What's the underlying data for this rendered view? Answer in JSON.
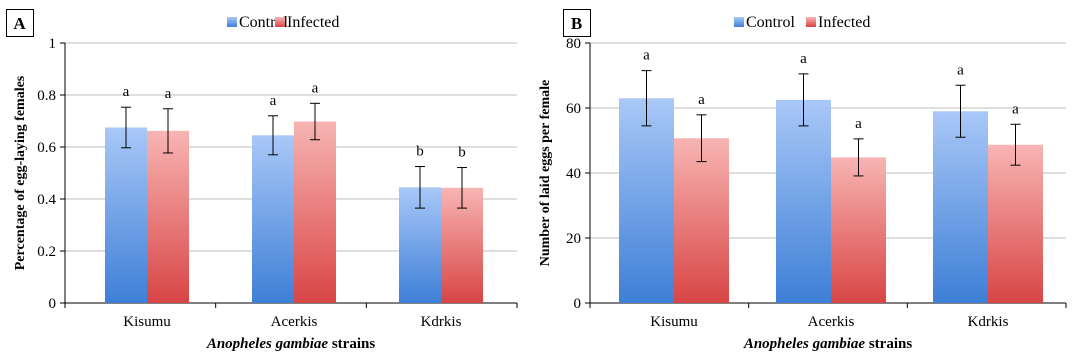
{
  "colors": {
    "control_top": "#a9c8f7",
    "control_bottom": "#3e7fd6",
    "infected_top": "#f7b5b3",
    "infected_bottom": "#d84545"
  },
  "chart_data": [
    {
      "type": "bar",
      "panel": "A",
      "categories": [
        "Kisumu",
        "Acerkis",
        "Kdrkis"
      ],
      "xlabel_bold": "Anopheles gambiae",
      "xlabel_rest": " strains",
      "ylabel": "Percentage of egg-laying females",
      "ylim": [
        0,
        1
      ],
      "yticks": [
        "0",
        "0.2",
        "0.4",
        "0.6",
        "0.8",
        "1"
      ],
      "ytick_values": [
        0,
        0.2,
        0.4,
        0.6,
        0.8,
        1
      ],
      "grid": true,
      "legend_position": "top",
      "series": [
        {
          "name": "Control",
          "values": [
            0.675,
            0.645,
            0.445
          ],
          "errors": [
            0.078,
            0.075,
            0.08
          ],
          "labels": [
            "a",
            "a",
            "b"
          ]
        },
        {
          "name": "Infected",
          "values": [
            0.662,
            0.698,
            0.443
          ],
          "errors": [
            0.085,
            0.07,
            0.078
          ],
          "labels": [
            "a",
            "a",
            "b"
          ]
        }
      ]
    },
    {
      "type": "bar",
      "panel": "B",
      "categories": [
        "Kisumu",
        "Acerkis",
        "Kdrkis"
      ],
      "xlabel_bold": "Anopheles gambiae",
      "xlabel_rest": " strains",
      "ylabel": "Number of laid eggs per female",
      "ylim": [
        0,
        80
      ],
      "yticks": [
        "0",
        "20",
        "40",
        "60",
        "80"
      ],
      "ytick_values": [
        0,
        20,
        40,
        60,
        80
      ],
      "grid": true,
      "legend_position": "top",
      "series": [
        {
          "name": "Control",
          "values": [
            63,
            62.5,
            59
          ],
          "errors": [
            8.5,
            8,
            8
          ],
          "labels": [
            "a",
            "a",
            "a"
          ]
        },
        {
          "name": "Infected",
          "values": [
            50.7,
            44.8,
            48.7
          ],
          "errors": [
            7.2,
            5.7,
            6.3
          ],
          "labels": [
            "a",
            "a",
            "a"
          ]
        }
      ]
    }
  ]
}
